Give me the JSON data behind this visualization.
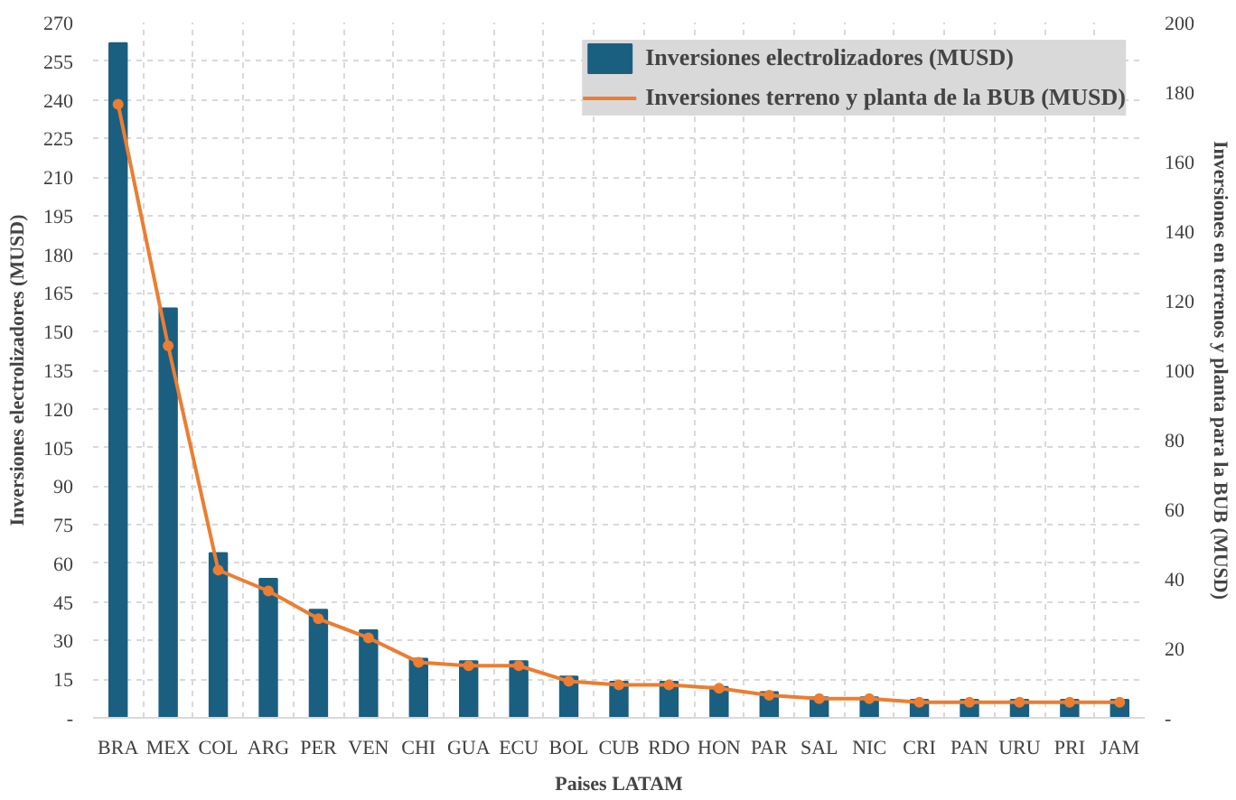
{
  "chart_data": {
    "type": "bar",
    "xlabel": "Paises LATAM",
    "ylabel": "Inversiones electrolizadores (MUSD)",
    "y2label": "Inversiones en terrenos y planta para la BUB (MUSD)",
    "categories": [
      "BRA",
      "MEX",
      "COL",
      "ARG",
      "PER",
      "VEN",
      "CHI",
      "GUA",
      "ECU",
      "BOL",
      "CUB",
      "RDO",
      "HON",
      "PAR",
      "SAL",
      "NIC",
      "CRI",
      "PAN",
      "URU",
      "PRI",
      "JAM"
    ],
    "series": [
      {
        "name": "Inversiones electrolizadores (MUSD)",
        "color": "#1a5f80",
        "values": [
          262,
          159,
          64,
          54,
          42,
          34,
          23,
          22,
          22,
          16,
          14,
          14,
          12,
          10,
          8,
          8,
          7,
          7,
          7,
          7,
          7
        ]
      },
      {
        "name": "Inversiones terreno y planta de la BUB (MUSD)",
        "type": "line",
        "axis": "y2",
        "color": "#ed7d31",
        "marker": "circle",
        "values": [
          176.5,
          107,
          42.5,
          36.5,
          28.5,
          23,
          16,
          15,
          15,
          10.5,
          9.5,
          9.5,
          8.5,
          6.5,
          5.5,
          5.5,
          4.5,
          4.5,
          4.5,
          4.5,
          4.5
        ]
      }
    ],
    "ylim": [
      0,
      270
    ],
    "yticks": [
      {
        "value": 0,
        "label": "-"
      },
      15,
      30,
      45,
      60,
      75,
      90,
      105,
      120,
      135,
      150,
      165,
      180,
      195,
      210,
      225,
      240,
      255,
      270
    ],
    "y2lim": [
      0,
      200
    ],
    "y2ticks": [
      {
        "value": 0,
        "label": "-"
      },
      20,
      40,
      60,
      80,
      100,
      120,
      140,
      160,
      180,
      200
    ],
    "grid": true,
    "legend": "top right"
  }
}
